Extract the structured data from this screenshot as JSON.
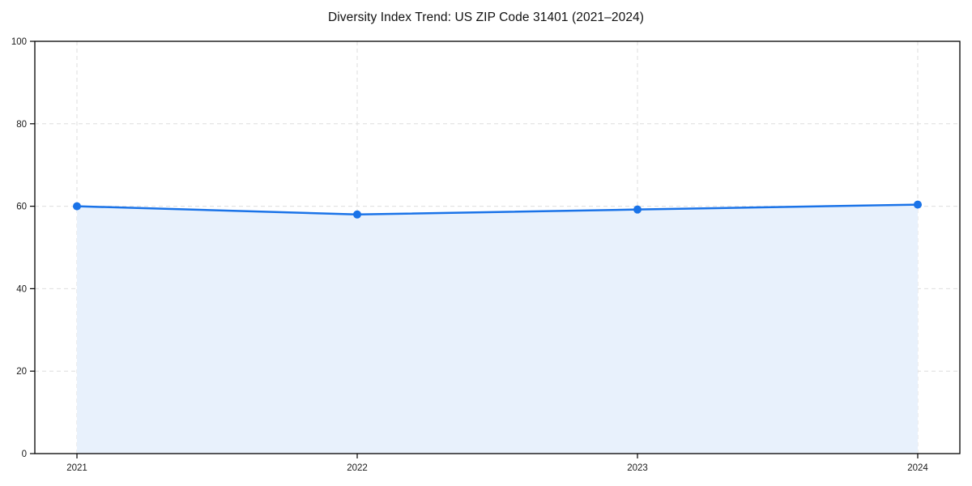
{
  "title": "Diversity Index Trend: US ZIP Code 31401 (2021–2024)",
  "chart_data": {
    "type": "line",
    "title": "Diversity Index Trend: US ZIP Code 31401 (2021–2024)",
    "categories": [
      "2021",
      "2022",
      "2023",
      "2024"
    ],
    "series": [
      {
        "name": "Diversity Index",
        "values": [
          60,
          58,
          59.2,
          60.4
        ]
      }
    ],
    "xlabel": "",
    "ylabel": "",
    "ylim": [
      0,
      100
    ],
    "yticks": [
      0,
      20,
      40,
      60,
      80,
      100
    ],
    "grid": true,
    "grid_style": "dashed",
    "legend_position": "none",
    "area_fill": true,
    "marker": "circle",
    "colors": {
      "line": "#1a73e8",
      "marker": "#1a73e8",
      "area_fill": "#e8f1fc",
      "grid": "#dedede",
      "spine": "#000000",
      "tick_label": "#1a1a1a",
      "background": "#ffffff"
    }
  }
}
